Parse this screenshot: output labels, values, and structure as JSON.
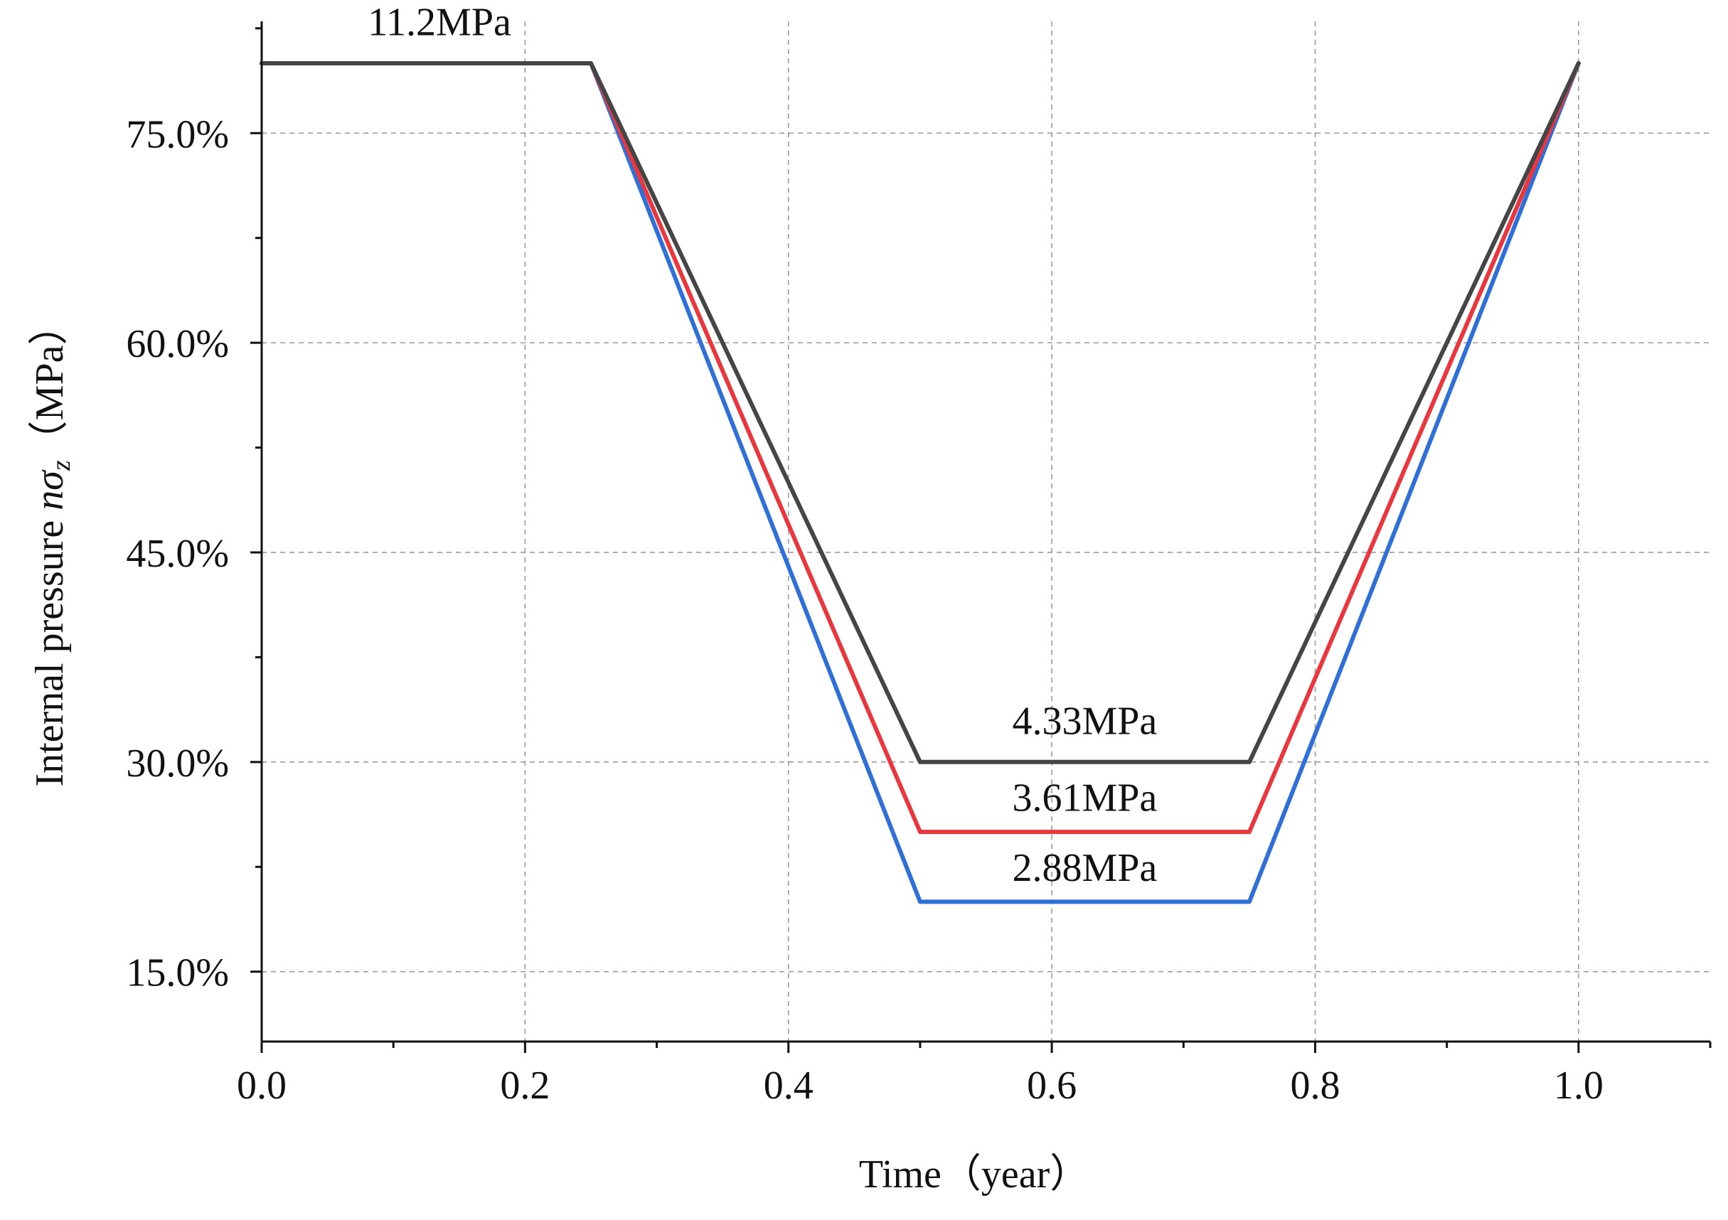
{
  "chart_data": {
    "type": "line",
    "title": "",
    "xlabel": "Time（year）",
    "ylabel_main": "Internal pressure ",
    "ylabel_n": "n",
    "ylabel_sigma": "σ",
    "ylabel_sub": "z",
    "ylabel_unit": "（MPa）",
    "xlim": [
      0.0,
      1.1
    ],
    "ylim": [
      10.0,
      83.0
    ],
    "grid": true,
    "x_ticks": [
      0.0,
      0.2,
      0.4,
      0.6,
      0.8,
      1.0
    ],
    "x_tick_labels": [
      "0.0",
      "0.2",
      "0.4",
      "0.6",
      "0.8",
      "1.0"
    ],
    "x_minor_ticks": [
      0.1,
      0.3,
      0.5,
      0.7,
      0.9,
      1.1
    ],
    "y_ticks": [
      15.0,
      30.0,
      45.0,
      60.0,
      75.0
    ],
    "y_tick_labels": [
      "15.0%",
      "30.0%",
      "45.0%",
      "60.0%",
      "75.0%"
    ],
    "y_minor_ticks": [
      22.5,
      37.5,
      52.5,
      67.5,
      82.5
    ],
    "series": [
      {
        "name": "2.88MPa",
        "color": "#2f6fd8",
        "x": [
          0.0,
          0.25,
          0.5,
          0.75,
          1.0
        ],
        "y": [
          80.0,
          80.0,
          20.0,
          20.0,
          80.0
        ]
      },
      {
        "name": "3.61MPa",
        "color": "#e8383d",
        "x": [
          0.0,
          0.25,
          0.5,
          0.75,
          1.0
        ],
        "y": [
          80.0,
          80.0,
          25.0,
          25.0,
          80.0
        ]
      },
      {
        "name": "4.33MPa",
        "color": "#454545",
        "x": [
          0.0,
          0.25,
          0.5,
          0.75,
          1.0
        ],
        "y": [
          80.0,
          80.0,
          30.0,
          30.0,
          80.0
        ]
      }
    ],
    "annotations": [
      {
        "text": "11.2MPa",
        "x": 0.135,
        "y": 82.0
      },
      {
        "text": "4.33MPa",
        "x": 0.625,
        "y": 32.0
      },
      {
        "text": "3.61MPa",
        "x": 0.625,
        "y": 26.5
      },
      {
        "text": "2.88MPa",
        "x": 0.625,
        "y": 21.5
      }
    ]
  }
}
